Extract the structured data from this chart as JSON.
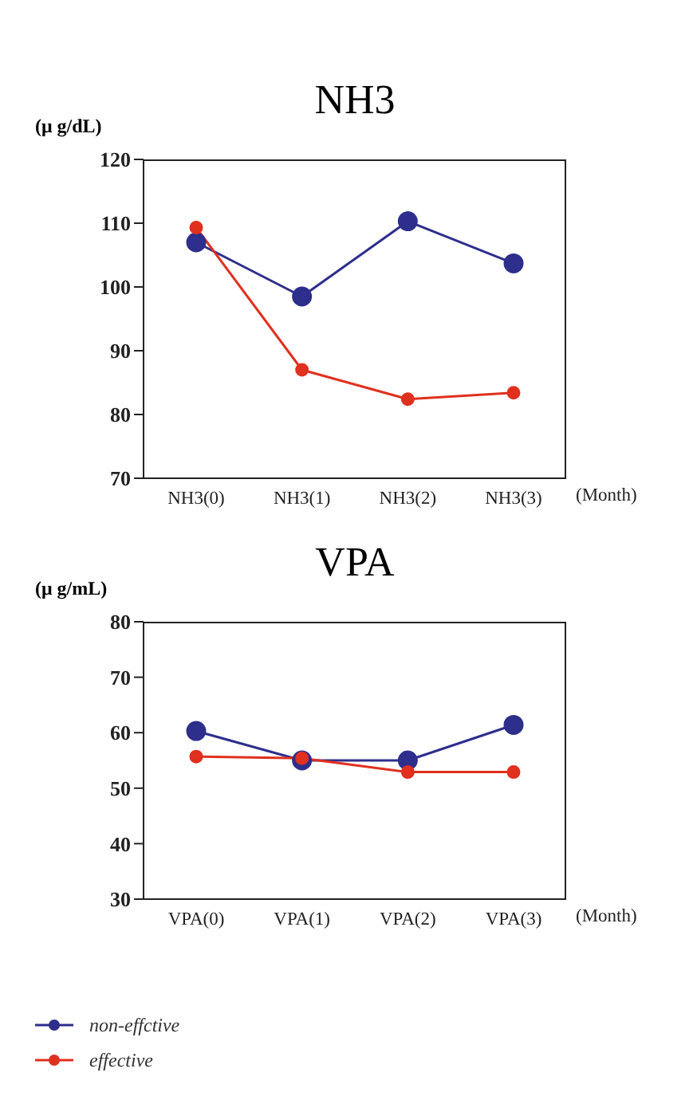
{
  "chart_data": [
    {
      "type": "line",
      "title": "NH3",
      "ylabel": "(μ g/dL)",
      "xlabel": "(Month)",
      "categories": [
        "NH3(0)",
        "NH3(1)",
        "NH3(2)",
        "NH3(3)"
      ],
      "series": [
        {
          "color": "#2e2e8c",
          "values": [
            107,
            98.5,
            110.3,
            103.7
          ]
        },
        {
          "color": "#e0301e",
          "values": [
            109.3,
            87,
            82.4,
            83.4
          ]
        }
      ],
      "ylim": [
        70,
        120
      ],
      "yticks": [
        70,
        80,
        90,
        100,
        110,
        120
      ],
      "grid": false,
      "legend": false,
      "marker": "circle",
      "line_style": "solid"
    },
    {
      "type": "line",
      "title": "VPA",
      "ylabel": "(μ g/mL)",
      "xlabel": "(Month)",
      "categories": [
        "VPA(0)",
        "VPA(1)",
        "VPA(2)",
        "VPA(3)"
      ],
      "series": [
        {
          "name": "non-effctive",
          "color": "#2e2e8c",
          "values": [
            60.3,
            55,
            55,
            61.4
          ]
        },
        {
          "name": "effective",
          "color": "#e0301e",
          "values": [
            55.7,
            55.4,
            52.9,
            52.9
          ]
        }
      ],
      "ylim": [
        30,
        80
      ],
      "yticks": [
        30,
        40,
        50,
        60,
        70,
        80
      ],
      "grid": false,
      "legend": "bottom left",
      "marker": "circle",
      "line_style": "solid"
    }
  ]
}
